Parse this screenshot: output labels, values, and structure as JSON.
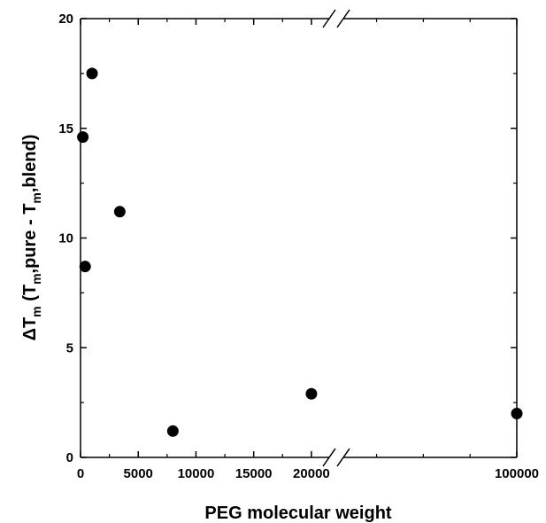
{
  "chart_data": {
    "type": "scatter",
    "xlabel": "PEG molecular weight",
    "ylabel": {
      "prefix": "ΔT",
      "sub1": "m",
      "mid1": " (T",
      "sub2": "m",
      "mid2": ",pure - T",
      "sub3": "m",
      "mid3": ",blend)"
    },
    "ylim": [
      0,
      20
    ],
    "yticks": [
      "0",
      "5",
      "10",
      "15",
      "20"
    ],
    "x_axis_break": true,
    "x_segments": [
      {
        "range": [
          0,
          22000
        ],
        "ticks": [
          "0",
          "5000",
          "10000",
          "15000",
          "20000"
        ]
      },
      {
        "range": [
          22000,
          100000
        ],
        "ticks": [
          "100000"
        ]
      }
    ],
    "points": [
      {
        "x": 200,
        "y": 14.6
      },
      {
        "x": 400,
        "y": 8.7
      },
      {
        "x": 1000,
        "y": 17.5
      },
      {
        "x": 3400,
        "y": 11.2
      },
      {
        "x": 8000,
        "y": 1.2
      },
      {
        "x": 20000,
        "y": 2.9
      },
      {
        "x": 100000,
        "y": 2.0
      }
    ],
    "marker_color": "#000000",
    "grid": false
  }
}
